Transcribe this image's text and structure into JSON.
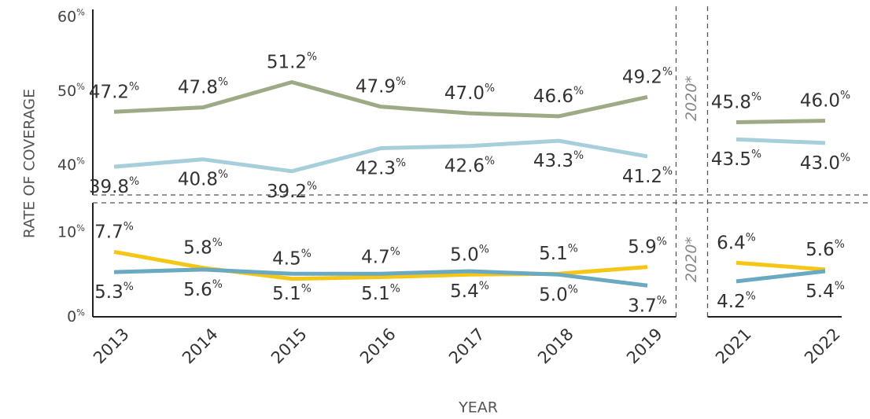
{
  "chart_data": [
    {
      "type": "line",
      "ylabel": "RATE OF COVERAGE",
      "annotation": "2020*",
      "ylim": [
        36,
        61
      ],
      "yticks": [
        {
          "value": 40,
          "label": "40%"
        },
        {
          "value": 50,
          "label": "50%"
        },
        {
          "value": 60,
          "label": "60%"
        }
      ],
      "series": [
        {
          "color": "#9cab85",
          "label_position": "above",
          "values": [
            47.2,
            47.8,
            51.2,
            47.9,
            47.0,
            46.6,
            49.2,
            null,
            45.8,
            46.0
          ],
          "value_labels": [
            "47.2%",
            "47.8%",
            "51.2%",
            "47.9%",
            "47.0%",
            "46.6%",
            "49.2%",
            null,
            "45.8%",
            "46.0%"
          ]
        },
        {
          "color": "#a6cfdb",
          "label_position": "below",
          "values": [
            39.8,
            40.8,
            39.2,
            42.3,
            42.6,
            43.3,
            41.2,
            null,
            43.5,
            43.0
          ],
          "value_labels": [
            "39.8%",
            "40.8%",
            "39.2%",
            "42.3%",
            "42.6%",
            "43.3%",
            "41.2%",
            null,
            "43.5%",
            "43.0%"
          ]
        }
      ]
    },
    {
      "type": "line",
      "xlabel": "YEAR",
      "annotation": "2020*",
      "categories": [
        "2013",
        "2014",
        "2015",
        "2016",
        "2017",
        "2018",
        "2019",
        null,
        "2021",
        "2022"
      ],
      "ylim": [
        0,
        13.5
      ],
      "yticks": [
        {
          "value": 0,
          "label": "0%"
        },
        {
          "value": 10,
          "label": "10%"
        }
      ],
      "series": [
        {
          "color": "#f5c616",
          "label_position": "above",
          "values": [
            7.7,
            5.8,
            4.5,
            4.7,
            5.0,
            5.1,
            5.9,
            null,
            6.4,
            5.6
          ],
          "value_labels": [
            "7.7%",
            "5.8%",
            "4.5%",
            "4.7%",
            "5.0%",
            "5.1%",
            "5.9%",
            null,
            "6.4%",
            "5.6%"
          ]
        },
        {
          "color": "#6aa9c2",
          "label_position": "below",
          "values": [
            5.3,
            5.6,
            5.1,
            5.1,
            5.4,
            5.0,
            3.7,
            null,
            4.2,
            5.4
          ],
          "value_labels": [
            "5.3%",
            "5.6%",
            "5.1%",
            "5.1%",
            "5.4%",
            "5.0%",
            "3.7%",
            null,
            "4.2%",
            "5.4%"
          ]
        }
      ]
    }
  ]
}
